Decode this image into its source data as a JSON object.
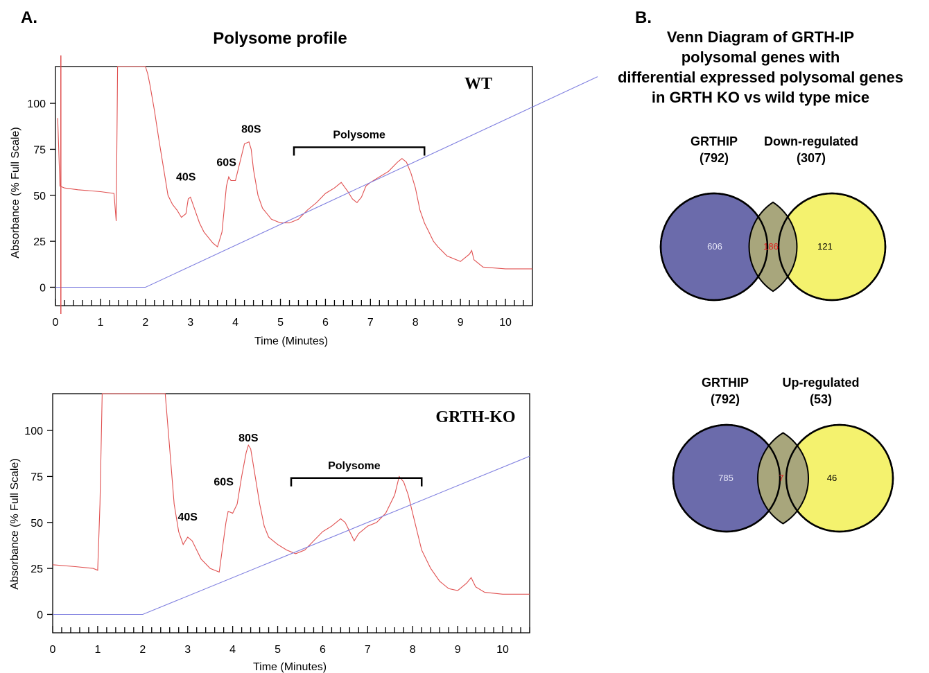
{
  "panels": {
    "a_label": "A.",
    "b_label": "B."
  },
  "chart_data": [
    {
      "type": "line",
      "title": "Polysome profile",
      "sample": "WT",
      "xlabel": "Time (Minutes)",
      "ylabel": "Absorbance (% Full Scale)",
      "xlim": [
        0,
        10.6
      ],
      "ylim": [
        -10,
        120
      ],
      "xticks": [
        0,
        1,
        2,
        3,
        4,
        5,
        6,
        7,
        8,
        9,
        10
      ],
      "yticks": [
        0,
        25,
        50,
        75,
        100
      ],
      "annotations": [
        {
          "text": "40S",
          "x": 2.9,
          "y": 58
        },
        {
          "text": "60S",
          "x": 3.8,
          "y": 66
        },
        {
          "text": "80S",
          "x": 4.35,
          "y": 84
        },
        {
          "text": "Polysome",
          "x": 6.75,
          "y": 81,
          "bracket": [
            5.3,
            8.2
          ]
        }
      ],
      "series": [
        {
          "color": "#e05050",
          "x": [
            0.05,
            0.1,
            0.2,
            0.5,
            1.0,
            1.3,
            1.35,
            1.38,
            1.42,
            1.45,
            1.5,
            1.6,
            1.8,
            2.0,
            2.05,
            2.1,
            2.2,
            2.3,
            2.4,
            2.5,
            2.6,
            2.7,
            2.8,
            2.9,
            2.95,
            3.0,
            3.1,
            3.2,
            3.3,
            3.4,
            3.5,
            3.6,
            3.7,
            3.8,
            3.85,
            3.9,
            4.0,
            4.1,
            4.2,
            4.3,
            4.35,
            4.4,
            4.5,
            4.6,
            4.7,
            4.8,
            5.0,
            5.2,
            5.4,
            5.6,
            5.8,
            6.0,
            6.2,
            6.35,
            6.5,
            6.6,
            6.7,
            6.8,
            6.9,
            7.0,
            7.2,
            7.4,
            7.6,
            7.7,
            7.8,
            7.9,
            8.0,
            8.1,
            8.2,
            8.3,
            8.4,
            8.5,
            8.7,
            9.0,
            9.2,
            9.25,
            9.3,
            9.5,
            10.0,
            10.6
          ],
          "y": [
            92,
            55,
            54,
            53,
            52,
            51,
            36,
            120,
            120,
            120,
            120,
            120,
            120,
            120,
            116,
            110,
            96,
            80,
            65,
            50,
            45,
            42,
            38,
            40,
            48,
            49,
            42,
            35,
            30,
            27,
            24,
            22,
            30,
            55,
            60,
            58,
            58,
            68,
            78,
            79,
            75,
            64,
            50,
            43,
            40,
            37,
            35,
            35,
            37,
            42,
            46,
            51,
            54,
            57,
            52,
            48,
            46,
            49,
            55,
            57,
            60,
            63,
            68,
            70,
            68,
            62,
            54,
            42,
            35,
            30,
            25,
            22,
            17,
            14,
            18,
            20,
            15,
            11,
            10,
            10
          ]
        },
        {
          "color": "#8080e0",
          "x": [
            0,
            2.0,
            10.6
          ],
          "y": [
            0,
            0,
            98
          ]
        }
      ]
    },
    {
      "type": "line",
      "sample": "GRTH-KO",
      "xlabel": "Time (Minutes)",
      "ylabel": "Absorbance (% Full Scale)",
      "xlim": [
        0,
        10.6
      ],
      "ylim": [
        -10,
        120
      ],
      "xticks": [
        0,
        1,
        2,
        3,
        4,
        5,
        6,
        7,
        8,
        9,
        10
      ],
      "yticks": [
        0,
        25,
        50,
        75,
        100
      ],
      "annotations": [
        {
          "text": "40S",
          "x": 3.0,
          "y": 51
        },
        {
          "text": "60S",
          "x": 3.8,
          "y": 70
        },
        {
          "text": "80S",
          "x": 4.35,
          "y": 94
        },
        {
          "text": "Polysome",
          "x": 6.7,
          "y": 79,
          "bracket": [
            5.3,
            8.2
          ]
        }
      ],
      "series": [
        {
          "color": "#e05050",
          "x": [
            0,
            0.5,
            0.9,
            1.0,
            1.05,
            1.1,
            1.2,
            1.5,
            2.0,
            2.5,
            2.6,
            2.7,
            2.8,
            2.9,
            3.0,
            3.1,
            3.2,
            3.3,
            3.5,
            3.7,
            3.85,
            3.9,
            4.0,
            4.1,
            4.2,
            4.3,
            4.35,
            4.4,
            4.5,
            4.6,
            4.7,
            4.8,
            5.0,
            5.2,
            5.4,
            5.6,
            5.8,
            6.0,
            6.2,
            6.4,
            6.5,
            6.6,
            6.7,
            6.8,
            7.0,
            7.2,
            7.4,
            7.6,
            7.7,
            7.8,
            7.9,
            8.0,
            8.2,
            8.4,
            8.6,
            8.8,
            9.0,
            9.2,
            9.3,
            9.4,
            9.6,
            10.0,
            10.6
          ],
          "y": [
            27,
            26,
            25,
            24,
            60,
            120,
            120,
            120,
            120,
            120,
            90,
            60,
            45,
            38,
            42,
            40,
            35,
            30,
            25,
            23,
            50,
            56,
            55,
            60,
            75,
            88,
            92,
            90,
            75,
            60,
            48,
            42,
            38,
            35,
            33,
            35,
            40,
            45,
            48,
            52,
            50,
            45,
            40,
            44,
            48,
            50,
            55,
            65,
            75,
            72,
            65,
            55,
            35,
            25,
            18,
            14,
            13,
            17,
            20,
            15,
            12,
            11,
            11
          ]
        },
        {
          "color": "#8080e0",
          "x": [
            0,
            2.0,
            10.6
          ],
          "y": [
            0,
            0,
            86
          ]
        }
      ]
    }
  ],
  "venn": {
    "title_lines": [
      "Venn Diagram of GRTH-IP",
      "polysomal genes with",
      "differential expressed polysomal genes",
      "in GRTH KO vs wild type mice"
    ],
    "colors": {
      "left": "#6b6bab",
      "right": "#f4f26e",
      "overlap": "#a8a67c",
      "left_text": "#e8e8f8",
      "overlap_text": "#e02020",
      "right_text": "#000000"
    },
    "diagrams": [
      {
        "left_name": "GRTHIP",
        "left_total": "(792)",
        "right_name": "Down-regulated",
        "right_total": "(307)",
        "left_only": "606",
        "overlap": "186",
        "right_only": "121"
      },
      {
        "left_name": "GRTHIP",
        "left_total": "(792)",
        "right_name": "Up-regulated",
        "right_total": "(53)",
        "left_only": "785",
        "overlap": "7",
        "right_only": "46"
      }
    ]
  }
}
